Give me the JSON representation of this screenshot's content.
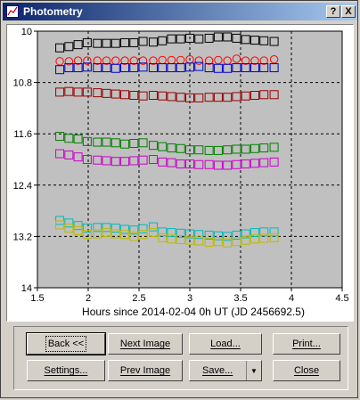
{
  "window": {
    "title": "Photometry",
    "help_label": "?",
    "close_label": "X"
  },
  "buttons": {
    "back": "Back <<",
    "next_image": "Next Image",
    "load": "Load...",
    "print": "Print...",
    "settings": "Settings...",
    "prev_image": "Prev Image",
    "save": "Save...",
    "save_dropdown": "▼",
    "close": "Close"
  },
  "chart_data": {
    "type": "scatter",
    "xlabel": "Hours since 2014-02-04 0h UT (JD 2456692.5)",
    "ylabel": "",
    "xlim": [
      1.5,
      4.5
    ],
    "ylim": [
      14,
      10
    ],
    "y_inverted": true,
    "grid": true,
    "x_ticks": [
      "1.5",
      "2",
      "2.5",
      "3",
      "3.5",
      "4",
      "4.5"
    ],
    "y_ticks": [
      "10",
      "10.8",
      "11.6",
      "12.4",
      "13.2",
      "14"
    ],
    "x": [
      1.72,
      1.81,
      1.9,
      1.99,
      2.09,
      2.18,
      2.27,
      2.36,
      2.45,
      2.54,
      2.64,
      2.73,
      2.82,
      2.91,
      3.0,
      3.09,
      3.19,
      3.28,
      3.37,
      3.46,
      3.55,
      3.64,
      3.73,
      3.83
    ],
    "series": [
      {
        "color": "#000000",
        "marker": "square",
        "values": [
          10.26,
          10.24,
          10.21,
          10.18,
          10.19,
          10.19,
          10.19,
          10.18,
          10.18,
          10.16,
          10.17,
          10.15,
          10.12,
          10.12,
          10.11,
          10.12,
          10.11,
          10.09,
          10.09,
          10.11,
          10.13,
          10.14,
          10.15,
          10.16
        ]
      },
      {
        "color": "#ff0000",
        "marker": "circle",
        "values": [
          10.47,
          10.47,
          10.46,
          10.46,
          10.46,
          10.46,
          10.46,
          10.46,
          10.46,
          10.46,
          10.46,
          10.45,
          10.45,
          10.45,
          10.44,
          10.46,
          10.46,
          10.45,
          10.46,
          10.43,
          10.46,
          10.46,
          10.46,
          10.44
        ]
      },
      {
        "color": "#0000cc",
        "marker": "square",
        "values": [
          10.6,
          10.57,
          10.57,
          10.56,
          10.57,
          10.57,
          10.58,
          10.57,
          10.57,
          10.56,
          10.57,
          10.57,
          10.57,
          10.57,
          10.56,
          10.55,
          10.57,
          10.58,
          10.58,
          10.57,
          10.57,
          10.57,
          10.57,
          10.57
        ]
      },
      {
        "color": "#990000",
        "marker": "square",
        "values": [
          10.95,
          10.94,
          10.95,
          10.95,
          10.96,
          10.97,
          10.98,
          10.99,
          11.0,
          11.01,
          11.0,
          11.01,
          11.02,
          11.03,
          11.04,
          11.04,
          11.03,
          11.03,
          11.03,
          11.02,
          11.01,
          11.0,
          10.99,
          10.99
        ]
      },
      {
        "color": "#008000",
        "marker": "square",
        "values": [
          11.64,
          11.67,
          11.68,
          11.72,
          11.73,
          11.73,
          11.74,
          11.76,
          11.75,
          11.74,
          11.78,
          11.8,
          11.82,
          11.83,
          11.85,
          11.85,
          11.86,
          11.86,
          11.85,
          11.84,
          11.84,
          11.83,
          11.82,
          11.81
        ]
      },
      {
        "color": "#cc00cc",
        "marker": "square",
        "values": [
          11.91,
          11.93,
          11.96,
          12.0,
          12.01,
          12.02,
          12.03,
          12.03,
          12.02,
          12.01,
          12.0,
          12.04,
          12.05,
          12.07,
          12.07,
          12.08,
          12.08,
          12.09,
          12.09,
          12.08,
          12.07,
          12.06,
          12.05,
          12.04
        ]
      },
      {
        "color": "#00bbbb",
        "marker": "square",
        "values": [
          12.95,
          12.99,
          13.03,
          13.07,
          13.06,
          13.06,
          13.07,
          13.09,
          13.1,
          13.08,
          13.05,
          13.13,
          13.14,
          13.15,
          13.16,
          13.17,
          13.18,
          13.19,
          13.2,
          13.18,
          13.16,
          13.14,
          13.13,
          13.13
        ]
      },
      {
        "color": "#bbbb00",
        "marker": "square",
        "values": [
          13.02,
          13.07,
          13.11,
          13.17,
          13.16,
          13.14,
          13.16,
          13.17,
          13.2,
          13.17,
          13.14,
          13.22,
          13.24,
          13.25,
          13.26,
          13.27,
          13.29,
          13.28,
          13.3,
          13.28,
          13.26,
          13.24,
          13.23,
          13.22
        ]
      }
    ]
  }
}
